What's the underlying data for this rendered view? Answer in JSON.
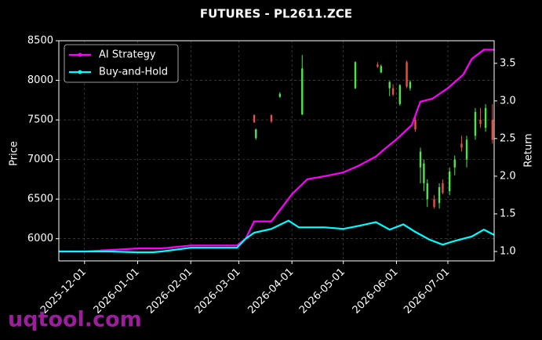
{
  "chart_data": {
    "type": "candlestick",
    "title": "FUTURES - PL2611.ZCE",
    "ylabel": "Price",
    "y2label": "Return",
    "watermark": "uqtool.com",
    "xlim": [
      "2025-11-16",
      "2026-07-28"
    ],
    "xticks": [
      "2025-12-01",
      "2026-01-01",
      "2026-02-01",
      "2026-03-01",
      "2026-04-01",
      "2026-05-01",
      "2026-06-01",
      "2026-07-01"
    ],
    "ylim": [
      5720,
      8500
    ],
    "yticks": [
      6000,
      6500,
      7000,
      7500,
      8000,
      8500
    ],
    "y2lim": [
      0.875,
      3.8
    ],
    "y2ticks": [
      {
        "value": 1,
        "label": "1.0"
      },
      1.5,
      {
        "value": 2,
        "label": "2.0"
      },
      2.5,
      {
        "value": 3,
        "label": "3.0"
      },
      3.5
    ],
    "grid": true,
    "legend": "upper left",
    "up_color": "#4ee44e",
    "down_color": "#e8503f",
    "candles": {
      "x": [
        "2026-03-10",
        "2026-03-11",
        "2026-03-20",
        "2026-03-25",
        "2026-04-07",
        "2026-05-08",
        "2026-05-21",
        "2026-05-23",
        "2026-05-28",
        "2026-05-30",
        "2026-06-03",
        "2026-06-07",
        "2026-06-09",
        "2026-06-12",
        "2026-06-15",
        "2026-06-17",
        "2026-06-19",
        "2026-06-23",
        "2026-06-26",
        "2026-06-28",
        "2026-07-02",
        "2026-07-05",
        "2026-07-09",
        "2026-07-12",
        "2026-07-17",
        "2026-07-20",
        "2026-07-23",
        "2026-07-27"
      ],
      "open": [
        7560,
        7270,
        7560,
        7790,
        7570,
        7900,
        8200,
        8100,
        7900,
        7900,
        7700,
        8230,
        7900,
        7500,
        6900,
        6700,
        6500,
        6500,
        6450,
        6700,
        6600,
        6900,
        7200,
        7000,
        7300,
        7500,
        7400,
        7500
      ],
      "high": [
        7570,
        7390,
        7570,
        7850,
        8320,
        8240,
        8230,
        8200,
        7990,
        7950,
        7950,
        8250,
        8000,
        7550,
        7150,
        7000,
        6750,
        6550,
        6700,
        6750,
        6900,
        7050,
        7300,
        7300,
        7650,
        7650,
        7700,
        7700
      ],
      "low": [
        7460,
        7250,
        7460,
        7780,
        7560,
        7890,
        8160,
        8090,
        7800,
        7800,
        7680,
        7900,
        7870,
        7350,
        6700,
        6600,
        6400,
        6380,
        6380,
        6560,
        6550,
        6800,
        7100,
        6900,
        7250,
        7400,
        7350,
        7200
      ],
      "close": [
        7470,
        7380,
        7480,
        7830,
        8150,
        8230,
        8170,
        8180,
        7980,
        7820,
        7940,
        7920,
        7980,
        7380,
        7100,
        6950,
        6700,
        6400,
        6650,
        6580,
        6850,
        7000,
        7150,
        7250,
        7600,
        7450,
        7650,
        7250
      ]
    },
    "series": [
      {
        "name": "AI Strategy",
        "color": "#ff00ff",
        "axis": "y2",
        "x": [
          "2025-11-16",
          "2025-12-01",
          "2026-01-01",
          "2026-01-15",
          "2026-02-01",
          "2026-02-28",
          "2026-03-05",
          "2026-03-10",
          "2026-03-20",
          "2026-03-25",
          "2026-04-01",
          "2026-04-10",
          "2026-04-20",
          "2026-05-01",
          "2026-05-10",
          "2026-05-20",
          "2026-05-25",
          "2026-06-01",
          "2026-06-10",
          "2026-06-15",
          "2026-06-22",
          "2026-07-01",
          "2026-07-10",
          "2026-07-15",
          "2026-07-22",
          "2026-07-28"
        ],
        "values": [
          1.0,
          1.0,
          1.04,
          1.04,
          1.08,
          1.08,
          1.17,
          1.4,
          1.4,
          1.55,
          1.76,
          1.96,
          2.0,
          2.05,
          2.14,
          2.26,
          2.36,
          2.49,
          2.68,
          2.99,
          3.03,
          3.17,
          3.35,
          3.56,
          3.68,
          3.68
        ]
      },
      {
        "name": "Buy-and-Hold",
        "color": "#00ffff",
        "axis": "y2",
        "x": [
          "2025-11-16",
          "2025-12-15",
          "2026-01-01",
          "2026-01-10",
          "2026-01-15",
          "2026-02-01",
          "2026-02-28",
          "2026-03-05",
          "2026-03-10",
          "2026-03-20",
          "2026-03-30",
          "2026-04-05",
          "2026-04-20",
          "2026-05-01",
          "2026-05-10",
          "2026-05-20",
          "2026-05-28",
          "2026-06-05",
          "2026-06-12",
          "2026-06-20",
          "2026-06-28",
          "2026-07-05",
          "2026-07-15",
          "2026-07-22",
          "2026-07-28"
        ],
        "values": [
          1.0,
          1.0,
          0.99,
          0.99,
          1.0,
          1.05,
          1.05,
          1.17,
          1.25,
          1.3,
          1.41,
          1.32,
          1.32,
          1.3,
          1.34,
          1.39,
          1.29,
          1.36,
          1.26,
          1.16,
          1.09,
          1.14,
          1.2,
          1.29,
          1.22
        ]
      }
    ]
  }
}
